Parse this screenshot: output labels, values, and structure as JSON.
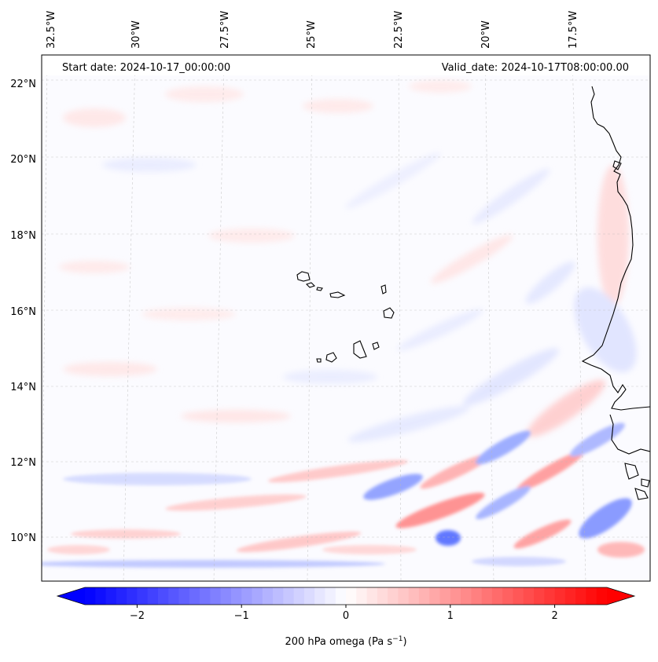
{
  "header": {
    "start_date": "Start date: 2024-10-17_00:00:00",
    "valid_date": "Valid_date: 2024-10-17T08:00:00.00"
  },
  "map": {
    "lon_labels": [
      "32.5°W",
      "30°W",
      "27.5°W",
      "25°W",
      "22.5°W",
      "20°W",
      "17.5°W"
    ],
    "lat_labels": [
      "22°N",
      "20°N",
      "18°N",
      "16°N",
      "14°N",
      "12°N",
      "10°N"
    ]
  },
  "colorbar": {
    "label_main": "200 hPa omega (Pa s",
    "label_exp": "−1",
    "label_close": ")",
    "tick_labels": [
      "−2",
      "−1",
      "0",
      "1",
      "2"
    ],
    "tick_values": [
      -2,
      -1,
      0,
      1,
      2
    ],
    "vmin": -2.5,
    "vmax": 2.5,
    "levels": 50,
    "colors": {
      "low": "#0000ff",
      "mid": "#ffffff",
      "high": "#ff0000"
    }
  }
}
